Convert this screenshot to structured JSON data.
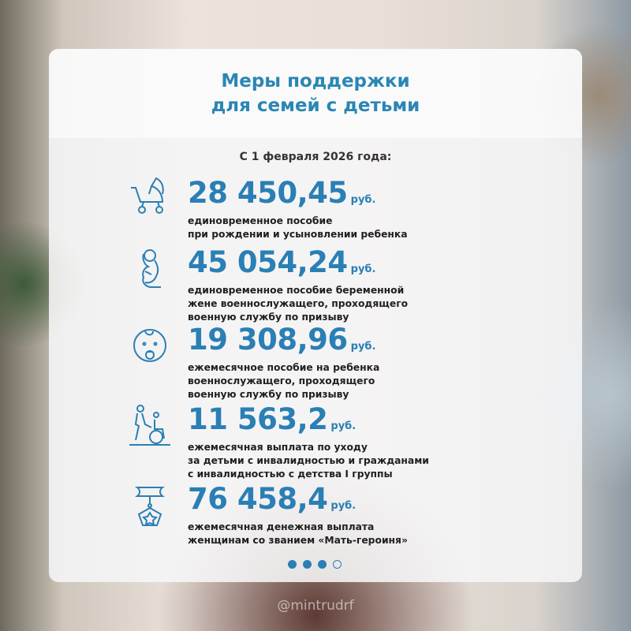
{
  "title_lines": [
    "Меры поддержки",
    "для семей с детьми"
  ],
  "subtitle": "С 1 февраля 2026 года:",
  "currency": "руб.",
  "accent_color": "#2a7fb5",
  "items": [
    {
      "icon": "stroller-icon",
      "amount": "28 450,45",
      "desc": [
        "единовременное пособие",
        "при рождении и усыновлении ребенка"
      ]
    },
    {
      "icon": "pregnant-woman-icon",
      "amount": "45 054,24",
      "desc": [
        "единовременное пособие беременной",
        "жене военнослужащего, проходящего",
        "военную службу по призыву"
      ]
    },
    {
      "icon": "baby-face-icon",
      "amount": "19 308,96",
      "desc": [
        "ежемесячное пособие на ребенка",
        "военнослужащего, проходящего",
        "военную службу по призыву"
      ]
    },
    {
      "icon": "wheelchair-caregiver-icon",
      "amount": "11 563,2",
      "desc": [
        "ежемесячная выплата по уходу",
        "за детьми с инвалидностью и гражданами",
        "с инвалидностью с детства I группы"
      ]
    },
    {
      "icon": "medal-icon",
      "amount": "76 458,4",
      "desc": [
        "ежемесячная денежная выплата",
        "женщинам со званием «Мать-героиня»"
      ]
    }
  ],
  "pagination": {
    "total": 4,
    "current": 3
  },
  "watermark": "@mintrudrf"
}
